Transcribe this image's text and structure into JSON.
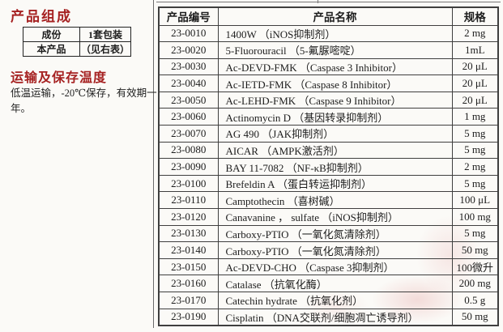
{
  "page": {
    "accent_red": "#a62222",
    "border_color": "#3f3f3f",
    "watermark_pink": "#d66c6c",
    "background": "#fbfaf7"
  },
  "left_panel": {
    "section1_title": "产品组成",
    "composition_table": {
      "rows": [
        [
          "成份",
          "1套包装"
        ],
        [
          "本产品",
          "（见右表）"
        ]
      ]
    },
    "section2_title": "运输及保存温度",
    "storage_text": "低温运输，-20℃保存，有效期一年。"
  },
  "table": {
    "headers": [
      "产品编号",
      "产品名称",
      "规格"
    ],
    "rows": [
      {
        "id": "23-0010",
        "name": "1400W （iNOS抑制剂）",
        "spec": "2 mg"
      },
      {
        "id": "23-0020",
        "name": "5-Fluorouracil （5-氟脲嘧啶）",
        "spec": "1mL"
      },
      {
        "id": "23-0030",
        "name": "Ac-DEVD-FMK （Caspase 3 Inhibitor）",
        "spec": "20 μL"
      },
      {
        "id": "23-0040",
        "name": "Ac-IETD-FMK （Caspase 8 Inhibitor）",
        "spec": "20 μL"
      },
      {
        "id": "23-0050",
        "name": "Ac-LEHD-FMK （Caspase 9 Inhibitor）",
        "spec": "20 μL"
      },
      {
        "id": "23-0060",
        "name": "Actinomycin D （基因转录抑制剂）",
        "spec": "1 mg"
      },
      {
        "id": "23-0070",
        "name": "AG 490 （JAK抑制剂）",
        "spec": "5 mg"
      },
      {
        "id": "23-0080",
        "name": "AICAR （AMPK激活剂）",
        "spec": "5 mg"
      },
      {
        "id": "23-0090",
        "name": "BAY 11-7082 （NF-κB抑制剂）",
        "spec": "2 mg"
      },
      {
        "id": "23-0100",
        "name": "Brefeldin A （蛋白转运抑制剂）",
        "spec": "5 mg"
      },
      {
        "id": "23-0110",
        "name": "Camptothecin （喜树碱）",
        "spec": "100 μL"
      },
      {
        "id": "23-0120",
        "name": "Canavanine ， sulfate （iNOS抑制剂）",
        "spec": "100 mg"
      },
      {
        "id": "23-0130",
        "name": "Carboxy-PTIO （一氧化氮清除剂）",
        "spec": "5 mg"
      },
      {
        "id": "23-0140",
        "name": "Carboxy-PTIO （一氧化氮清除剂）",
        "spec": "50 mg"
      },
      {
        "id": "23-0150",
        "name": "Ac-DEVD-CHO （Caspase 3抑制剂）",
        "spec": "100微升"
      },
      {
        "id": "23-0160",
        "name": "Catalase （抗氧化酶）",
        "spec": "200 mg"
      },
      {
        "id": "23-0170",
        "name": "Catechin hydrate （抗氧化剂）",
        "spec": "0.5 g"
      },
      {
        "id": "23-0190",
        "name": "Cisplatin （DNA交联剂/细胞凋亡诱导剂）",
        "spec": "50 mg"
      }
    ]
  }
}
